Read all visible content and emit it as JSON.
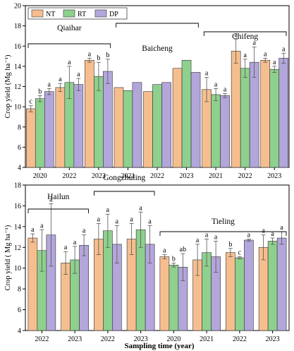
{
  "colors": {
    "NT": "#F6BE8E",
    "RT": "#8ED08E",
    "DP": "#B3A6DB",
    "edge": "#333333"
  },
  "xlabel": "Sampling time (year)",
  "chart_data": [
    {
      "type": "bar",
      "panel": "top",
      "ylabel": "Crop yield (Mg ha⁻¹)",
      "ylim": [
        4,
        20
      ],
      "yticks": [
        4,
        6,
        8,
        10,
        12,
        14,
        16,
        18,
        20
      ],
      "legend": {
        "position": "top-left",
        "entries": [
          "NT",
          "RT",
          "DP"
        ]
      },
      "categories": [
        "2020",
        "2022",
        "2023",
        "2021",
        "2022",
        "2023",
        "2021",
        "2022",
        "2023"
      ],
      "sites": [
        {
          "name": "Qiaihar",
          "span": [
            0,
            2
          ]
        },
        {
          "name": "Baicheng",
          "span": [
            3,
            5
          ]
        },
        {
          "name": "Chifeng",
          "span": [
            6,
            8
          ]
        }
      ],
      "series": [
        {
          "name": "NT",
          "values": [
            9.8,
            11.9,
            14.6,
            11.9,
            11.5,
            13.8,
            11.7,
            15.5,
            14.6
          ],
          "errors": [
            0.3,
            0.4,
            0.2,
            null,
            null,
            null,
            1.2,
            1.2,
            0.2
          ],
          "labels": [
            "c",
            "a",
            "a",
            "",
            "",
            "",
            "a",
            "a",
            "a"
          ]
        },
        {
          "name": "RT",
          "values": [
            10.8,
            12.4,
            13.0,
            11.6,
            12.2,
            14.6,
            11.2,
            13.8,
            13.7
          ],
          "errors": [
            0.3,
            1.6,
            1.4,
            null,
            null,
            null,
            0.6,
            0.9,
            0.3
          ],
          "labels": [
            "b",
            "a",
            "b",
            "",
            "",
            "",
            "a",
            "a",
            "a"
          ]
        },
        {
          "name": "DP",
          "values": [
            11.5,
            12.2,
            13.5,
            12.4,
            12.4,
            13.4,
            11.1,
            14.4,
            14.8
          ],
          "errors": [
            0.3,
            0.6,
            1.2,
            null,
            null,
            null,
            0.2,
            1.5,
            0.5
          ],
          "labels": [
            "a",
            "a",
            "b",
            "",
            "",
            "",
            "a",
            "a",
            "a"
          ]
        }
      ]
    },
    {
      "type": "bar",
      "panel": "bottom",
      "ylabel": "Crop yield ( Mg ha⁻¹)",
      "ylim": [
        4,
        18
      ],
      "yticks": [
        4,
        6,
        8,
        10,
        12,
        14,
        16,
        18
      ],
      "categories": [
        "2022",
        "2023",
        "2022",
        "2023",
        "2020",
        "2021",
        "2022",
        "2023"
      ],
      "sites": [
        {
          "name": "Hailun",
          "span": [
            0,
            1
          ]
        },
        {
          "name": "Gongzhuling",
          "span": [
            2,
            3
          ]
        },
        {
          "name": "Tieling",
          "span": [
            4,
            7
          ]
        }
      ],
      "series": [
        {
          "name": "NT",
          "values": [
            12.9,
            10.5,
            12.8,
            12.8,
            11.1,
            10.8,
            11.5,
            12.0
          ],
          "errors": [
            0.4,
            1.1,
            1.5,
            1.5,
            0.2,
            1.5,
            0.4,
            1.2
          ],
          "labels": [
            "a",
            "a",
            "a",
            "a",
            "a",
            "a",
            "b",
            "a"
          ]
        },
        {
          "name": "RT",
          "values": [
            11.7,
            10.8,
            13.6,
            13.7,
            10.3,
            11.5,
            11.0,
            12.6
          ],
          "errors": [
            2.0,
            1.3,
            1.6,
            1.7,
            0.2,
            1.3,
            0.1,
            0.3
          ],
          "labels": [
            "a",
            "a",
            "a",
            "a",
            "b",
            "a",
            "c",
            "a"
          ]
        },
        {
          "name": "DP",
          "values": [
            13.2,
            12.2,
            12.3,
            12.3,
            10.1,
            11.1,
            12.7,
            12.9
          ],
          "errors": [
            3.0,
            1.0,
            1.8,
            1.8,
            1.3,
            1.5,
            0.1,
            0.6
          ],
          "labels": [
            "a",
            "a",
            "a",
            "a",
            "ab",
            "a",
            "a",
            "a"
          ]
        }
      ]
    }
  ]
}
